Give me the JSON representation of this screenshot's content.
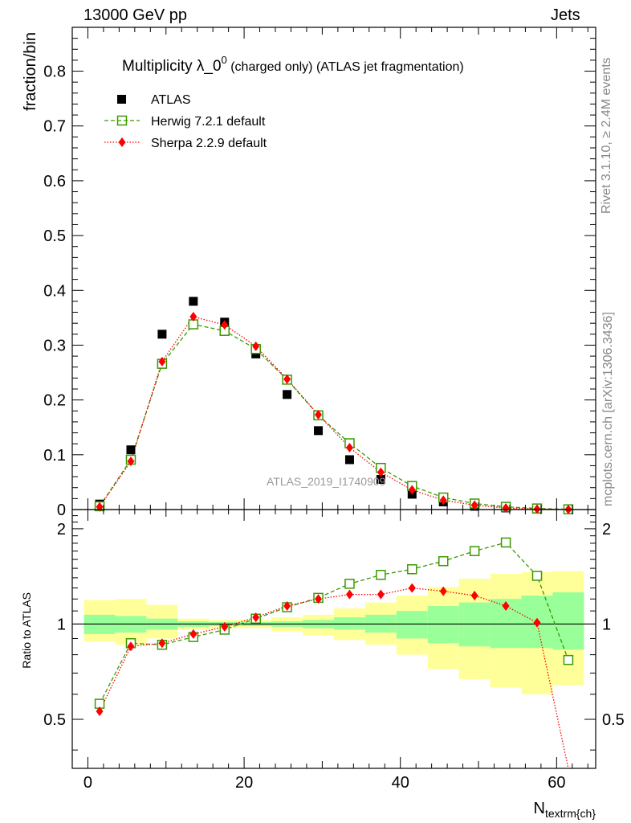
{
  "header": {
    "left": "13000 GeV pp",
    "right": "Jets"
  },
  "side_labels": {
    "rivet": "Rivet 3.1.10, ≥ 2.4M events",
    "mcplots": "mcplots.cern.ch [arXiv:1306.3436]"
  },
  "watermark": "ATLAS_2019_I1740909",
  "colors": {
    "atlas": "#000000",
    "herwig": "#3a9a00",
    "sherpa": "#ff0000",
    "band_inner": "#99ff99",
    "band_outer": "#ffff99"
  },
  "chart_data": [
    {
      "type": "scatter",
      "title_main": "Multiplicity λ_0",
      "title_sup": "0",
      "title_rest": " (charged only) (ATLAS jet fragmentation)",
      "ylabel": "fraction/bin",
      "xlim": [
        -2,
        65
      ],
      "ylim": [
        0,
        0.88
      ],
      "yticks": [
        0,
        0.1,
        0.2,
        0.3,
        0.4,
        0.5,
        0.6,
        0.7,
        0.8
      ],
      "ytick_labels": [
        "0",
        "0.1",
        "0.2",
        "0.3",
        "0.4",
        "0.5",
        "0.6",
        "0.7",
        "0.8"
      ],
      "legend": [
        "ATLAS",
        "Herwig 7.2.1 default",
        "Sherpa 2.2.9 default"
      ],
      "x": [
        1.5,
        5.5,
        9.5,
        13.5,
        17.5,
        21.5,
        25.5,
        29.5,
        33.5,
        37.5,
        41.5,
        45.5,
        49.5,
        53.5,
        57.5,
        61.5
      ],
      "series": [
        {
          "name": "ATLAS",
          "values": [
            0.01,
            0.109,
            0.32,
            0.38,
            0.342,
            0.284,
            0.21,
            0.144,
            0.091,
            0.055,
            0.028,
            0.014,
            0.006,
            0.003,
            0.001,
            0.0005
          ]
        },
        {
          "name": "Herwig 7.2.1 default",
          "values": [
            0.006,
            0.091,
            0.266,
            0.338,
            0.326,
            0.293,
            0.237,
            0.172,
            0.121,
            0.076,
            0.043,
            0.022,
            0.011,
            0.005,
            0.002,
            0.0005
          ]
        },
        {
          "name": "Sherpa 2.2.9 default",
          "values": [
            0.005,
            0.088,
            0.27,
            0.352,
            0.337,
            0.298,
            0.238,
            0.173,
            0.113,
            0.068,
            0.036,
            0.017,
            0.008,
            0.003,
            0.001,
            0.0001
          ]
        }
      ]
    },
    {
      "type": "line",
      "ylabel": "Ratio to ATLAS",
      "xlabel_main": "N",
      "xlabel_sub": "textrm{ch}",
      "xlim": [
        -2,
        65
      ],
      "ylim": [
        0.35,
        2.3
      ],
      "yscale": "log",
      "xticks": [
        0,
        20,
        40,
        60
      ],
      "xtick_labels": [
        "0",
        "20",
        "40",
        "60"
      ],
      "yticks": [
        0.5,
        1,
        2
      ],
      "ytick_labels": [
        "0.5",
        "1",
        "2"
      ],
      "bin_edges": [
        -0.5,
        3.5,
        7.5,
        11.5,
        15.5,
        19.5,
        23.5,
        27.5,
        31.5,
        35.5,
        39.5,
        43.5,
        47.5,
        51.5,
        55.5,
        59.5,
        63.5
      ],
      "band_inner_lo": [
        0.93,
        0.94,
        0.96,
        0.98,
        0.985,
        0.985,
        0.98,
        0.97,
        0.96,
        0.94,
        0.9,
        0.87,
        0.85,
        0.84,
        0.84,
        0.83
      ],
      "band_inner_hi": [
        1.07,
        1.06,
        1.04,
        1.02,
        1.015,
        1.015,
        1.02,
        1.03,
        1.05,
        1.07,
        1.1,
        1.14,
        1.17,
        1.2,
        1.23,
        1.26
      ],
      "band_outer_lo": [
        0.88,
        0.86,
        0.9,
        0.96,
        0.97,
        0.97,
        0.95,
        0.92,
        0.89,
        0.86,
        0.8,
        0.72,
        0.67,
        0.63,
        0.6,
        0.64
      ],
      "band_outer_hi": [
        1.19,
        1.2,
        1.15,
        1.04,
        1.03,
        1.03,
        1.05,
        1.07,
        1.12,
        1.17,
        1.23,
        1.31,
        1.39,
        1.44,
        1.46,
        1.47
      ],
      "x": [
        1.5,
        5.5,
        9.5,
        13.5,
        17.5,
        21.5,
        25.5,
        29.5,
        33.5,
        37.5,
        41.5,
        45.5,
        49.5,
        53.5,
        57.5,
        61.5
      ],
      "series": [
        {
          "name": "Herwig 7.2.1 default",
          "values": [
            0.56,
            0.87,
            0.86,
            0.91,
            0.96,
            1.04,
            1.13,
            1.21,
            1.34,
            1.43,
            1.49,
            1.58,
            1.7,
            1.81,
            1.42,
            0.77
          ]
        },
        {
          "name": "Sherpa 2.2.9 default",
          "values": [
            0.53,
            0.85,
            0.87,
            0.93,
            0.98,
            1.05,
            1.14,
            1.2,
            1.24,
            1.24,
            1.3,
            1.27,
            1.23,
            1.14,
            1.01,
            0.3
          ]
        }
      ]
    }
  ]
}
